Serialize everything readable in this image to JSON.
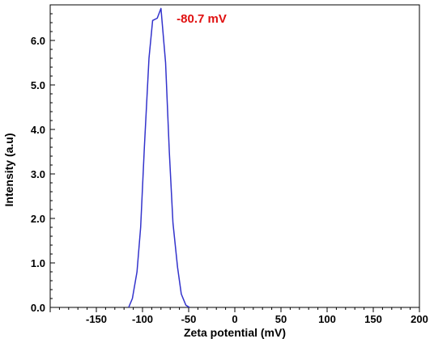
{
  "chart_data": {
    "type": "line",
    "title": "",
    "xlabel": "Zeta potential (mV)",
    "ylabel": "Intensity (a.u)",
    "xlim": [
      -200,
      200
    ],
    "ylim": [
      0,
      6.8
    ],
    "grid": false,
    "legend": "none",
    "x_ticks": [
      -150,
      -100,
      -50,
      0,
      50,
      100,
      150,
      200
    ],
    "x_tick_labels": [
      "-150",
      "-100",
      "-50",
      "0",
      "50",
      "100",
      "150",
      "200"
    ],
    "y_ticks": [
      0,
      1,
      2,
      3,
      4,
      5,
      6
    ],
    "y_tick_labels": [
      "0.0",
      "1.0",
      "2.0",
      "3.0",
      "4.0",
      "5.0",
      "6.0"
    ],
    "series": [
      {
        "color": "#3333cc",
        "x": [
          -115,
          -111,
          -106,
          -102,
          -98,
          -93,
          -89,
          -84,
          -80,
          -75,
          -71,
          -67,
          -62,
          -58,
          -53,
          -49
        ],
        "y": [
          0,
          0.2,
          0.8,
          1.8,
          3.6,
          5.6,
          6.45,
          6.5,
          6.72,
          5.5,
          3.5,
          1.9,
          0.9,
          0.3,
          0.05,
          0
        ]
      }
    ],
    "annotations": [
      {
        "text": "-80.7 mV",
        "x": -63,
        "y": 6.4,
        "color": "#e01010"
      }
    ],
    "colors": {
      "axis": "#000000",
      "line": "#3333cc",
      "annotation": "#e01010"
    }
  }
}
